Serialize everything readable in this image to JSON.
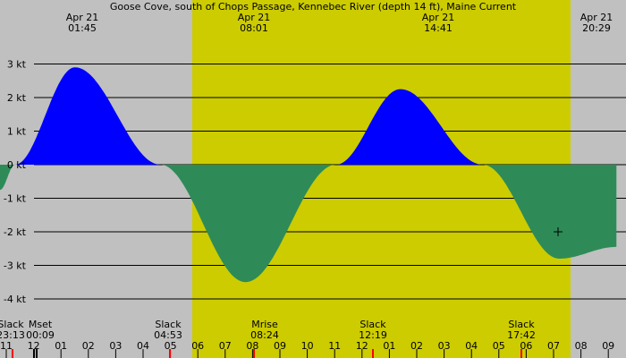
{
  "colors": {
    "night": "#c0c0c0",
    "day": "#cccc00",
    "flood": "#0000ff",
    "ebb": "#2e8b57",
    "grid": "#000000",
    "moon_tick": "#000000",
    "sun_tick": "#ff0000"
  },
  "chart_data": {
    "type": "area",
    "title": "Goose Cove, south of Chops Passage, Kennebec River (depth 14 ft), Maine Current",
    "ylabel_unit": "kt",
    "y_ticks": [
      {
        "value": 3,
        "label": "3 kt"
      },
      {
        "value": 2,
        "label": "2 kt"
      },
      {
        "value": 1,
        "label": "1 kt"
      },
      {
        "value": 0,
        "label": "0 kt"
      },
      {
        "value": -1,
        "label": "-1 kt"
      },
      {
        "value": -2,
        "label": "-2 kt"
      },
      {
        "value": -3,
        "label": "-3 kt"
      },
      {
        "value": -4,
        "label": "-4 kt"
      }
    ],
    "x_range_hours": [
      10.75,
      33.3
    ],
    "grid": true,
    "daylight": {
      "start": 6.0,
      "end": 19.5
    },
    "peaks": [
      {
        "date": "Apr 21",
        "time": "01:45",
        "hour": 25.75,
        "value": 2.9
      },
      {
        "date": "Apr 21",
        "time": "08:01",
        "hour": 32.02,
        "value": -3.5
      },
      {
        "date": "Apr 21",
        "time": "14:41",
        "hour": 38.68,
        "value": 2.3
      },
      {
        "date": "Apr 21",
        "time": "20:29",
        "hour": 44.48,
        "value": -2.8
      }
    ],
    "curve": [
      {
        "t": 0.0,
        "v": -0.75
      },
      {
        "t": 0.55,
        "v": 0.0
      },
      {
        "t": 2.75,
        "v": 2.9
      },
      {
        "t": 5.88,
        "v": 0.0
      },
      {
        "t": 9.0,
        "v": -3.5
      },
      {
        "t": 12.32,
        "v": 0.0
      },
      {
        "t": 14.68,
        "v": 2.25
      },
      {
        "t": 17.7,
        "v": 0.0
      },
      {
        "t": 20.5,
        "v": -2.8
      },
      {
        "t": 22.6,
        "v": -2.45
      }
    ],
    "events": [
      {
        "name": "Slack",
        "time": "23:13",
        "hour": 10.7,
        "kind": "slack"
      },
      {
        "name": "Mset",
        "time": "00:09",
        "hour": 11.15,
        "kind": "moon"
      },
      {
        "name": "Slack",
        "time": "04:53",
        "hour": 15.9,
        "kind": "slack"
      },
      {
        "name": "Mrise",
        "time": "08:24",
        "hour": 19.45,
        "kind": "moon"
      },
      {
        "name": "Slack",
        "time": "12:19",
        "hour": 23.3,
        "kind": "slack"
      },
      {
        "name": "Slack",
        "time": "17:42",
        "hour": 28.7,
        "kind": "slack"
      }
    ],
    "hour_labels": [
      "11",
      "12",
      "01",
      "02",
      "03",
      "04",
      "05",
      "06",
      "07",
      "08",
      "09",
      "10",
      "11",
      "12",
      "01",
      "02",
      "03",
      "04",
      "05",
      "06",
      "07",
      "08",
      "09"
    ],
    "marker": {
      "hour": 29.2,
      "value": -2.0
    }
  }
}
